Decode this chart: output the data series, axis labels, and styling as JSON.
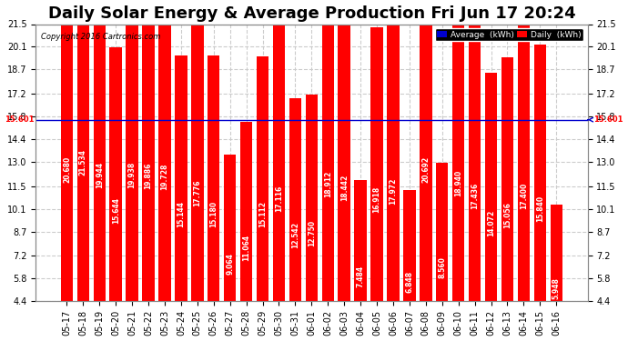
{
  "title": "Daily Solar Energy & Average Production Fri Jun 17 20:24",
  "copyright": "Copyright 2016 Cartronics.com",
  "categories": [
    "05-17",
    "05-18",
    "05-19",
    "05-20",
    "05-21",
    "05-22",
    "05-23",
    "05-24",
    "05-25",
    "05-26",
    "05-27",
    "05-28",
    "05-29",
    "05-30",
    "05-31",
    "06-01",
    "06-02",
    "06-03",
    "06-04",
    "06-05",
    "06-06",
    "06-07",
    "06-08",
    "06-09",
    "06-10",
    "06-11",
    "06-12",
    "06-13",
    "06-14",
    "06-15",
    "06-16"
  ],
  "values": [
    20.68,
    21.534,
    19.944,
    15.644,
    19.938,
    19.886,
    19.728,
    15.144,
    17.776,
    15.18,
    9.064,
    11.064,
    15.112,
    17.116,
    12.542,
    12.75,
    18.912,
    18.442,
    7.484,
    16.918,
    17.972,
    6.848,
    20.692,
    8.56,
    18.94,
    17.436,
    14.072,
    15.056,
    17.4,
    15.84,
    5.948
  ],
  "average_line": 15.601,
  "bar_color": "#ff0000",
  "average_line_color": "#0000cd",
  "background_color": "#ffffff",
  "plot_background_color": "#ffffff",
  "grid_color": "#cccccc",
  "yticks": [
    4.4,
    5.8,
    7.2,
    8.7,
    10.1,
    11.5,
    13.0,
    14.4,
    15.8,
    17.2,
    18.7,
    20.1,
    21.5
  ],
  "ylim": [
    4.4,
    21.5
  ],
  "title_fontsize": 13,
  "tick_fontsize": 7,
  "bar_label_fontsize": 5.5,
  "average_label": "15.601",
  "average_label_color": "#ff0000",
  "legend_average_label": "Average  (kWh)",
  "legend_daily_label": "Daily  (kWh)",
  "legend_average_bg": "#0000cd",
  "legend_daily_bg": "#ff0000"
}
